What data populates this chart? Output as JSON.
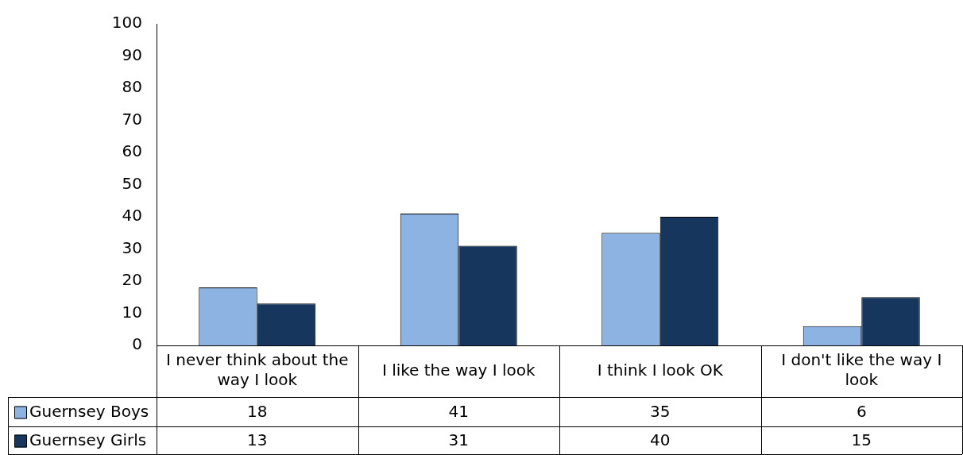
{
  "chart_data": {
    "type": "bar",
    "categories": [
      "I never think about the way I look",
      "I like the way I look",
      "I think I look OK",
      "I don't like the way I look"
    ],
    "series": [
      {
        "name": "Guernsey Boys",
        "color": "#8db3e2",
        "values": [
          18,
          41,
          35,
          6
        ]
      },
      {
        "name": "Guernsey Girls",
        "color": "#17365d",
        "values": [
          13,
          31,
          40,
          15
        ]
      }
    ],
    "ylim": [
      0,
      100
    ],
    "yticks": [
      0,
      10,
      20,
      30,
      40,
      50,
      60,
      70,
      80,
      90,
      100
    ],
    "grid": false,
    "legend": "bottom left",
    "data_labels": true
  }
}
